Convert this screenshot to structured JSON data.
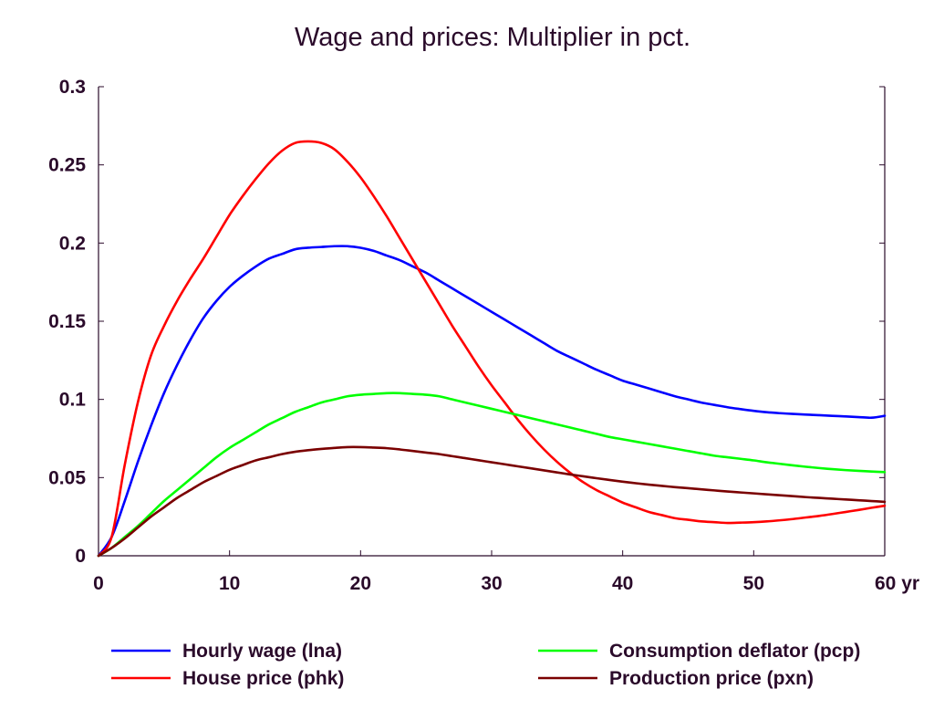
{
  "chart_data": {
    "type": "line",
    "title": "Wage and prices: Multiplier in pct.",
    "xlabel": "",
    "ylabel": "",
    "x_unit_label": "yr",
    "xlim": [
      0,
      60
    ],
    "ylim": [
      0,
      0.3
    ],
    "x_ticks": [
      0,
      10,
      20,
      30,
      40,
      50,
      60
    ],
    "x_tick_labels": [
      "0",
      "10",
      "20",
      "30",
      "40",
      "50",
      "60 yr"
    ],
    "y_ticks": [
      0,
      0.05,
      0.1,
      0.15,
      0.2,
      0.25,
      0.3
    ],
    "y_tick_labels": [
      "0",
      "0.05",
      "0.1",
      "0.15",
      "0.2",
      "0.25",
      "0.3"
    ],
    "grid": false,
    "legend_position": "bottom",
    "x": [
      0,
      1,
      2,
      3,
      4,
      5,
      6,
      7,
      8,
      9,
      10,
      11,
      12,
      13,
      14,
      15,
      16,
      17,
      18,
      19,
      20,
      21,
      22,
      23,
      24,
      25,
      26,
      27,
      28,
      29,
      30,
      31,
      32,
      33,
      34,
      35,
      36,
      37,
      38,
      39,
      40,
      41,
      42,
      43,
      44,
      45,
      46,
      47,
      48,
      49,
      50,
      51,
      52,
      53,
      54,
      55,
      56,
      57,
      58,
      59,
      60
    ],
    "series": [
      {
        "name": "Hourly wage (lna)",
        "color": "#0000ff",
        "values": [
          0,
          0.012,
          0.035,
          0.06,
          0.083,
          0.104,
          0.122,
          0.138,
          0.152,
          0.163,
          0.172,
          0.179,
          0.185,
          0.19,
          0.193,
          0.196,
          0.197,
          0.1975,
          0.198,
          0.198,
          0.197,
          0.195,
          0.192,
          0.189,
          0.185,
          0.181,
          0.176,
          0.171,
          0.166,
          0.161,
          0.156,
          0.151,
          0.146,
          0.141,
          0.136,
          0.131,
          0.127,
          0.123,
          0.119,
          0.1155,
          0.112,
          0.1095,
          0.107,
          0.1045,
          0.102,
          0.1,
          0.098,
          0.0965,
          0.095,
          0.0938,
          0.0927,
          0.0918,
          0.0912,
          0.0907,
          0.0903,
          0.0899,
          0.0895,
          0.0891,
          0.0887,
          0.0883,
          0.0895
        ]
      },
      {
        "name": "House price (phk)",
        "color": "#ff0000",
        "values": [
          0,
          0.012,
          0.058,
          0.098,
          0.128,
          0.147,
          0.163,
          0.177,
          0.19,
          0.204,
          0.218,
          0.23,
          0.241,
          0.251,
          0.259,
          0.264,
          0.265,
          0.264,
          0.26,
          0.252,
          0.242,
          0.23,
          0.217,
          0.203,
          0.189,
          0.175,
          0.161,
          0.147,
          0.134,
          0.121,
          0.109,
          0.098,
          0.087,
          0.077,
          0.068,
          0.06,
          0.053,
          0.047,
          0.042,
          0.038,
          0.034,
          0.031,
          0.028,
          0.026,
          0.024,
          0.023,
          0.022,
          0.0215,
          0.021,
          0.0212,
          0.0215,
          0.022,
          0.0227,
          0.0235,
          0.0245,
          0.0255,
          0.0267,
          0.028,
          0.0293,
          0.0307,
          0.032
        ]
      },
      {
        "name": "Consumption deflator (pcp)",
        "color": "#00ff00",
        "values": [
          0,
          0.005,
          0.012,
          0.019,
          0.027,
          0.035,
          0.042,
          0.049,
          0.056,
          0.063,
          0.069,
          0.074,
          0.079,
          0.084,
          0.088,
          0.092,
          0.095,
          0.098,
          0.1,
          0.102,
          0.103,
          0.1035,
          0.104,
          0.104,
          0.1035,
          0.103,
          0.102,
          0.1,
          0.098,
          0.096,
          0.094,
          0.092,
          0.09,
          0.088,
          0.086,
          0.084,
          0.082,
          0.08,
          0.078,
          0.076,
          0.0745,
          0.073,
          0.0715,
          0.07,
          0.0685,
          0.067,
          0.0655,
          0.064,
          0.063,
          0.062,
          0.061,
          0.0598,
          0.0588,
          0.0578,
          0.0569,
          0.0561,
          0.0554,
          0.0548,
          0.0543,
          0.0539,
          0.0535
        ]
      },
      {
        "name": "Production price (pxn)",
        "color": "#7a0000",
        "values": [
          0,
          0.005,
          0.011,
          0.018,
          0.025,
          0.031,
          0.037,
          0.042,
          0.047,
          0.051,
          0.055,
          0.058,
          0.061,
          0.063,
          0.065,
          0.0665,
          0.0675,
          0.0683,
          0.069,
          0.0695,
          0.0695,
          0.0692,
          0.0688,
          0.068,
          0.067,
          0.066,
          0.065,
          0.0637,
          0.0624,
          0.0611,
          0.0598,
          0.0585,
          0.0572,
          0.0559,
          0.0546,
          0.0533,
          0.052,
          0.0508,
          0.0496,
          0.0485,
          0.0474,
          0.0464,
          0.0455,
          0.0447,
          0.0439,
          0.0432,
          0.0425,
          0.0418,
          0.0411,
          0.0405,
          0.0399,
          0.0393,
          0.0387,
          0.0381,
          0.0375,
          0.037,
          0.0365,
          0.036,
          0.0355,
          0.035,
          0.0345
        ]
      }
    ]
  }
}
